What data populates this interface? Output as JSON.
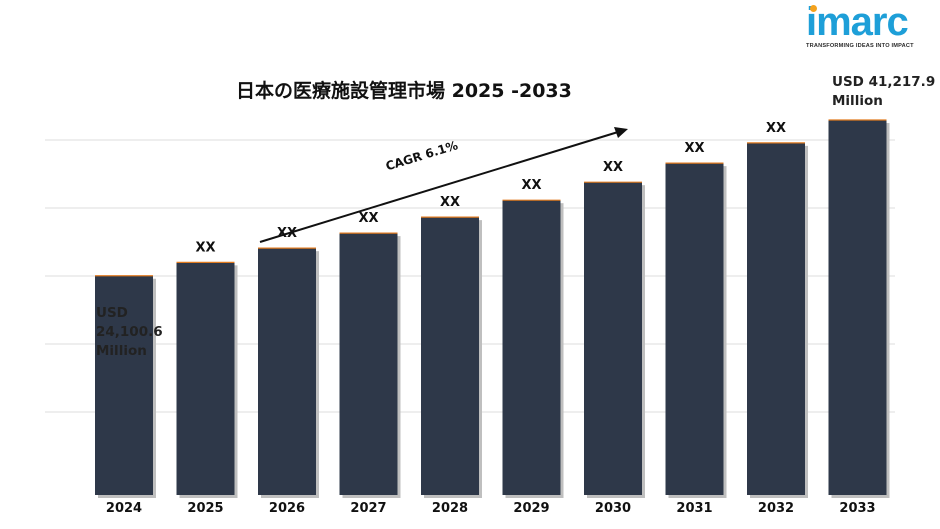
{
  "brand": {
    "name": "imarc",
    "tagline": "TRANSFORMING IDEAS INTO IMPACT",
    "accent_color": "#1e9fd8",
    "dot_color": "#f4a21d"
  },
  "chart_data": {
    "type": "bar",
    "title": "日本の医療施設管理市場 2025 -2033",
    "categories": [
      "2024",
      "2025",
      "2026",
      "2027",
      "2028",
      "2029",
      "2030",
      "2031",
      "2032",
      "2033"
    ],
    "values": [
      24100.6,
      25572,
      27132,
      28787,
      30543,
      32406,
      34383,
      36480,
      38706,
      41217.9
    ],
    "data_labels": [
      "",
      "XX",
      "XX",
      "XX",
      "XX",
      "XX",
      "XX",
      "XX",
      "XX",
      ""
    ],
    "bar_color": "#2e3849",
    "edge_color": "#e07a1f",
    "ylim": [
      0,
      43000
    ],
    "grid": true,
    "xlabel": "",
    "ylabel": "",
    "annotations": {
      "cagr": "CAGR 6.1%",
      "start_value": [
        "USD",
        "24,100.6",
        "Million"
      ],
      "end_value": [
        "USD 41,217.9",
        "Million"
      ]
    }
  }
}
